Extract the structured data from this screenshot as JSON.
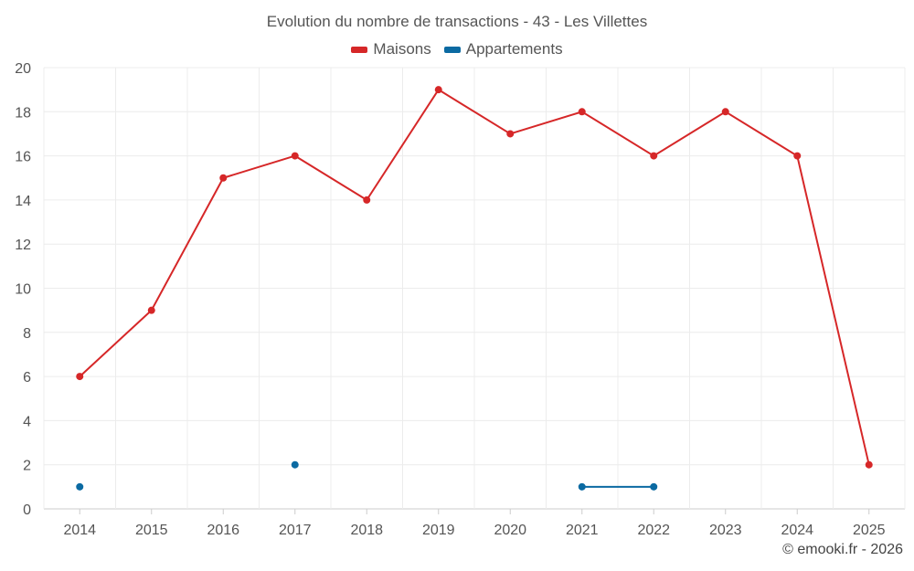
{
  "chart_data": {
    "type": "line",
    "title": "Evolution du nombre de transactions - 43 - Les Villettes",
    "categories": [
      "2014",
      "2015",
      "2016",
      "2017",
      "2018",
      "2019",
      "2020",
      "2021",
      "2022",
      "2023",
      "2024",
      "2025"
    ],
    "series": [
      {
        "name": "Maisons",
        "color": "#d62728",
        "values": [
          6,
          9,
          15,
          16,
          14,
          19,
          17,
          18,
          16,
          18,
          16,
          2
        ]
      },
      {
        "name": "Appartements",
        "color": "#0b6aa2",
        "values": [
          1,
          null,
          null,
          2,
          null,
          null,
          null,
          1,
          1,
          null,
          null,
          null
        ]
      }
    ],
    "ylim": [
      0,
      20
    ],
    "yticks": [
      0,
      2,
      4,
      6,
      8,
      10,
      12,
      14,
      16,
      18,
      20
    ],
    "xlabel": "",
    "ylabel": "",
    "grid": true,
    "legend_position": "top-center"
  },
  "credit": "© emooki.fr - 2026"
}
